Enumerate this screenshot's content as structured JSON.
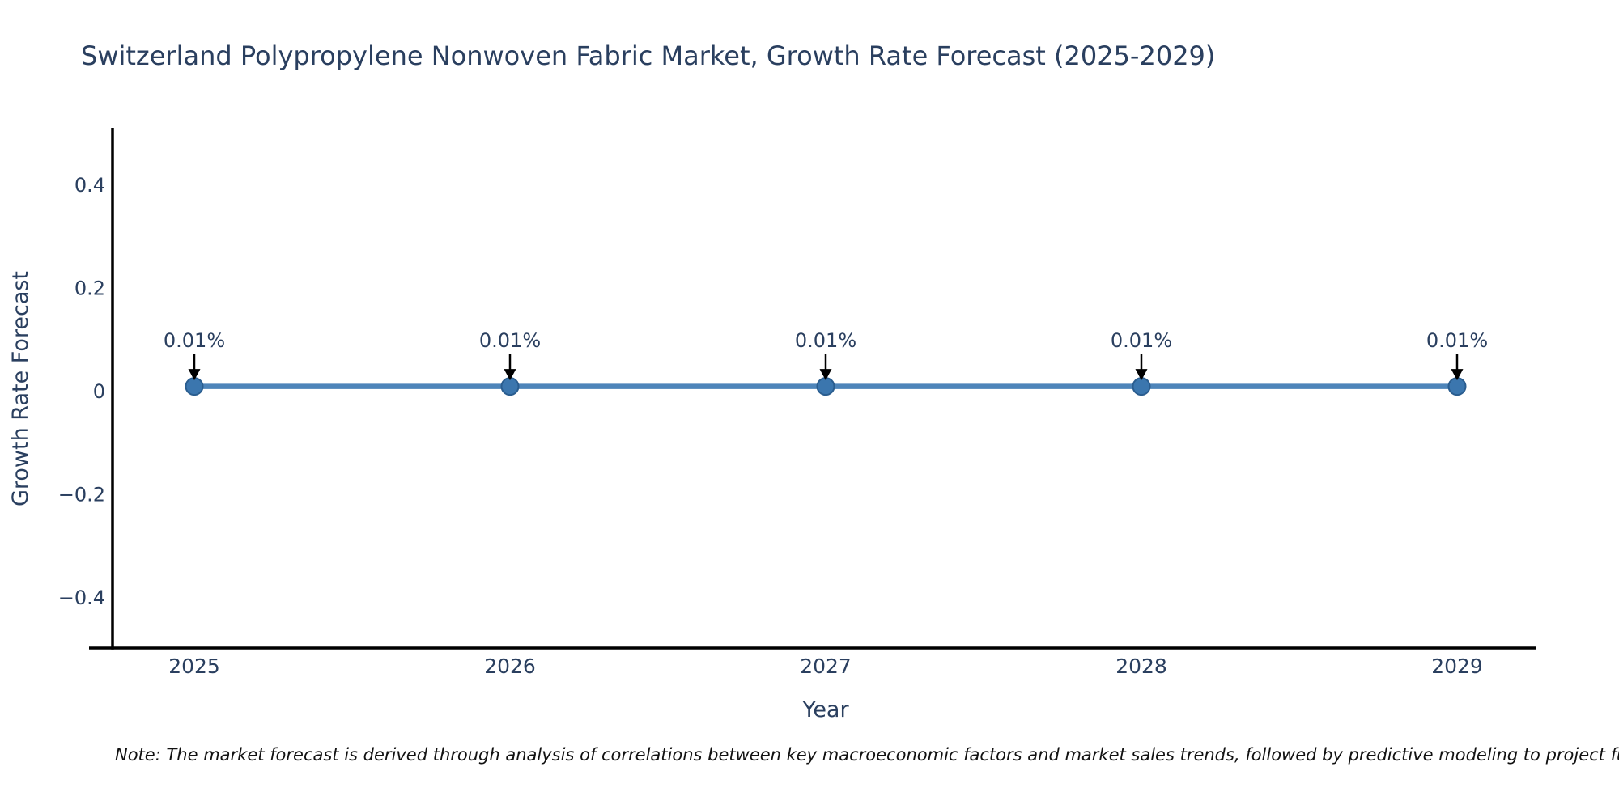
{
  "note": "Note: The market forecast is derived through analysis of correlations between key macroeconomic factors and market sales trends, followed by predictive modeling to project future sa",
  "chart_data": {
    "type": "line",
    "title": "Switzerland Polypropylene Nonwoven Fabric Market, Growth Rate Forecast (2025-2029)",
    "xlabel": "Year",
    "ylabel": "Growth Rate Forecast",
    "x": [
      2025,
      2026,
      2027,
      2028,
      2029
    ],
    "xtick_labels": [
      "2025",
      "2026",
      "2027",
      "2028",
      "2029"
    ],
    "series": [
      {
        "name": "Growth Rate Forecast",
        "values": [
          0.01,
          0.01,
          0.01,
          0.01,
          0.01
        ]
      }
    ],
    "point_labels": [
      "0.01%",
      "0.01%",
      "0.01%",
      "0.01%",
      "0.01%"
    ],
    "yticks": [
      -0.4,
      -0.2,
      0,
      0.2,
      0.4
    ],
    "ytick_labels": [
      "−0.4",
      "−0.2",
      "0",
      "0.2",
      "0.4"
    ],
    "ylim": [
      -0.5,
      0.51
    ],
    "grid": false,
    "legend": "none",
    "annotation_style": "down-arrow",
    "colors": {
      "line": "#4e85ba",
      "marker": "#3b76ae",
      "marker_edge": "#2a5d8f",
      "axis": "#000000",
      "tick_text": "#2a3f5f",
      "annotation_text": "#2a3f5f",
      "annotation_arrow": "#000000",
      "note_text": "#111111",
      "background": "#ffffff"
    }
  }
}
